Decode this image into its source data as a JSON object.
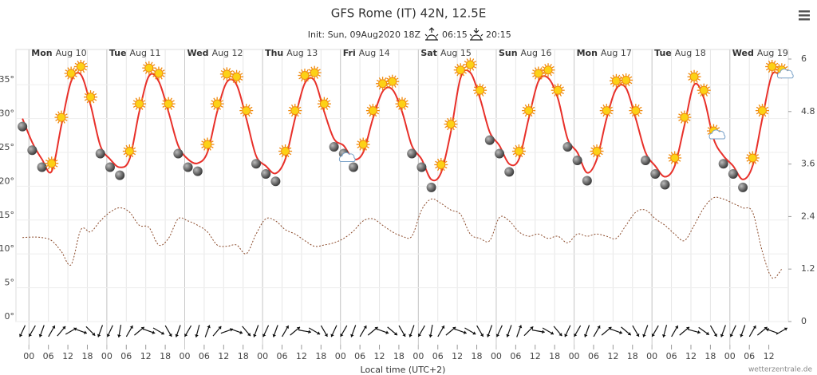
{
  "chart_data": {
    "type": "line",
    "title": "GFS Rome (IT) 42N, 12.5E",
    "subtitle": "Init: Sun, 09Aug2020 18Z",
    "sunrise": "06:15",
    "sunset": "20:15",
    "xlabel": "Local time (UTC+2)",
    "credit": "wetterzentrale.de",
    "x": [
      -2,
      1,
      4,
      7,
      10,
      13,
      16,
      19,
      22,
      25,
      28,
      31,
      34,
      37,
      40,
      43,
      46,
      49,
      52,
      55,
      58,
      61,
      64,
      67,
      70,
      73,
      76,
      79,
      82,
      85,
      88,
      91,
      94,
      97,
      100,
      103,
      106,
      109,
      112,
      115,
      118,
      121,
      124,
      127,
      130,
      133,
      136,
      139,
      142,
      145,
      148,
      151,
      154,
      157,
      160,
      163,
      166,
      169,
      172,
      175,
      178,
      181,
      184,
      187,
      190,
      193,
      196,
      199,
      202,
      205,
      208,
      211,
      214,
      217,
      220,
      223,
      226,
      229,
      232
    ],
    "series": [
      {
        "color": "#e8302a",
        "values": [
          30,
          26.5,
          24,
          22.2,
          29,
          35.5,
          36.5,
          32,
          26,
          24,
          22.8,
          24,
          31,
          36.3,
          35.5,
          31,
          26,
          24,
          23.4,
          25,
          31,
          35.4,
          35,
          30,
          24.5,
          23,
          21.9,
          24,
          30,
          35.2,
          35.6,
          31,
          27,
          26,
          24,
          25,
          30,
          34,
          34.3,
          31,
          26,
          24,
          21,
          22,
          28,
          36,
          36.8,
          33,
          28,
          26,
          23.3,
          24,
          30,
          35.5,
          36,
          33,
          27,
          25,
          22,
          24,
          30,
          34.4,
          34.5,
          30,
          25,
          23,
          21.4,
          23,
          29,
          35,
          33,
          27,
          24.5,
          23,
          21,
          23,
          30,
          36.5,
          36
        ]
      },
      {
        "color": "#8b4a2a",
        "axis": "y2",
        "dashed": true,
        "values": [
          1.92,
          1.93,
          1.92,
          1.85,
          1.6,
          1.3,
          2.1,
          2.05,
          2.3,
          2.5,
          2.6,
          2.5,
          2.2,
          2.15,
          1.75,
          1.9,
          2.35,
          2.3,
          2.2,
          2.05,
          1.75,
          1.72,
          1.75,
          1.55,
          2.0,
          2.35,
          2.3,
          2.1,
          2.0,
          1.85,
          1.72,
          1.75,
          1.8,
          1.9,
          2.07,
          2.3,
          2.35,
          2.2,
          2.05,
          1.95,
          1.95,
          2.55,
          2.8,
          2.7,
          2.55,
          2.45,
          2.0,
          1.9,
          1.85,
          2.38,
          2.3,
          2.05,
          1.95,
          2.0,
          1.9,
          1.95,
          1.8,
          2.0,
          1.95,
          2.0,
          1.95,
          1.9,
          2.2,
          2.5,
          2.55,
          2.35,
          2.2,
          2.0,
          1.85,
          2.2,
          2.6,
          2.83,
          2.8,
          2.7,
          2.6,
          2.5,
          1.6,
          1.0,
          1.2
        ]
      }
    ],
    "symbols": [
      "moon",
      "moon",
      "moon",
      "sun",
      "sun",
      "sun",
      "sun",
      "sun",
      "moon",
      "moon",
      "moon",
      "sun",
      "sun",
      "sun",
      "sun",
      "sun",
      "moon",
      "moon",
      "moon",
      "sun",
      "sun",
      "sun",
      "sun",
      "sun",
      "moon",
      "moon",
      "moon",
      "sun",
      "sun",
      "sun",
      "sun",
      "sun",
      "moon",
      "moon-cloud",
      "moon",
      "sun",
      "sun",
      "sun",
      "sun",
      "sun",
      "moon",
      "moon",
      "moon",
      "sun",
      "sun",
      "sun",
      "sun",
      "sun",
      "moon",
      "moon",
      "moon",
      "sun",
      "sun",
      "sun",
      "sun",
      "sun",
      "moon",
      "moon",
      "moon",
      "sun",
      "sun",
      "sun",
      "sun",
      "sun",
      "moon",
      "moon",
      "moon",
      "sun",
      "sun",
      "sun",
      "sun",
      "sun-cloud",
      "moon",
      "moon",
      "moon",
      "sun",
      "sun",
      "sun",
      "sun-cloud"
    ],
    "wind_direction": [
      115,
      120,
      110,
      300,
      310,
      330,
      20,
      45,
      110,
      115,
      100,
      300,
      320,
      20,
      30,
      60,
      110,
      120,
      105,
      290,
      310,
      340,
      20,
      50,
      110,
      115,
      110,
      300,
      320,
      10,
      30,
      60,
      115,
      120,
      110,
      300,
      320,
      20,
      40,
      60,
      110,
      120,
      100,
      300,
      320,
      20,
      30,
      60,
      110,
      115,
      110,
      290,
      315,
      10,
      30,
      50,
      115,
      120,
      110,
      300,
      320,
      20,
      40,
      60,
      110,
      120,
      105,
      300,
      320,
      15,
      35,
      60,
      110,
      115,
      110,
      300,
      320,
      200,
      330
    ],
    "xlim": [
      -4,
      234
    ],
    "ylim": [
      0,
      38.8
    ],
    "y2lim": [
      0,
      6
    ],
    "yticks": [
      {
        "value": 0,
        "label": "0°"
      },
      {
        "value": 5,
        "label": "5°"
      },
      {
        "value": 10,
        "label": "10°"
      },
      {
        "value": 15,
        "label": "15°"
      },
      {
        "value": 20,
        "label": "20°"
      },
      {
        "value": 25,
        "label": "25°"
      },
      {
        "value": 30,
        "label": "30°"
      },
      {
        "value": 35,
        "label": "35°"
      }
    ],
    "y2ticks": [
      0,
      1.2,
      2.4,
      3.6,
      4.8,
      6
    ],
    "xticks": [
      {
        "value": 0,
        "label": "00"
      },
      {
        "value": 6,
        "label": "06"
      },
      {
        "value": 12,
        "label": "12"
      },
      {
        "value": 18,
        "label": "18"
      },
      {
        "value": 24,
        "label": "00"
      },
      {
        "value": 30,
        "label": "06"
      },
      {
        "value": 36,
        "label": "12"
      },
      {
        "value": 42,
        "label": "18"
      },
      {
        "value": 48,
        "label": "00"
      },
      {
        "value": 54,
        "label": "06"
      },
      {
        "value": 60,
        "label": "12"
      },
      {
        "value": 66,
        "label": "18"
      },
      {
        "value": 72,
        "label": "00"
      },
      {
        "value": 78,
        "label": "06"
      },
      {
        "value": 84,
        "label": "12"
      },
      {
        "value": 90,
        "label": "18"
      },
      {
        "value": 96,
        "label": "00"
      },
      {
        "value": 102,
        "label": "06"
      },
      {
        "value": 108,
        "label": "12"
      },
      {
        "value": 114,
        "label": "18"
      },
      {
        "value": 120,
        "label": "00"
      },
      {
        "value": 126,
        "label": "06"
      },
      {
        "value": 132,
        "label": "12"
      },
      {
        "value": 138,
        "label": "18"
      },
      {
        "value": 144,
        "label": "00"
      },
      {
        "value": 150,
        "label": "06"
      },
      {
        "value": 156,
        "label": "12"
      },
      {
        "value": 162,
        "label": "18"
      },
      {
        "value": 168,
        "label": "00"
      },
      {
        "value": 174,
        "label": "06"
      },
      {
        "value": 180,
        "label": "12"
      },
      {
        "value": 186,
        "label": "18"
      },
      {
        "value": 192,
        "label": "00"
      },
      {
        "value": 198,
        "label": "06"
      },
      {
        "value": 204,
        "label": "12"
      },
      {
        "value": 210,
        "label": "18"
      },
      {
        "value": 216,
        "label": "00"
      },
      {
        "value": 222,
        "label": "06"
      },
      {
        "value": 228,
        "label": "12"
      }
    ],
    "days": [
      {
        "value": 0,
        "weekday": "Mon",
        "date": "Aug 10"
      },
      {
        "value": 24,
        "weekday": "Tue",
        "date": "Aug 11"
      },
      {
        "value": 48,
        "weekday": "Wed",
        "date": "Aug 12"
      },
      {
        "value": 72,
        "weekday": "Thu",
        "date": "Aug 13"
      },
      {
        "value": 96,
        "weekday": "Fri",
        "date": "Aug 14"
      },
      {
        "value": 120,
        "weekday": "Sat",
        "date": "Aug 15"
      },
      {
        "value": 144,
        "weekday": "Sun",
        "date": "Aug 16"
      },
      {
        "value": 168,
        "weekday": "Mon",
        "date": "Aug 17"
      },
      {
        "value": 192,
        "weekday": "Tue",
        "date": "Aug 18"
      },
      {
        "value": 216,
        "weekday": "Wed",
        "date": "Aug 19"
      }
    ],
    "grid": true
  }
}
